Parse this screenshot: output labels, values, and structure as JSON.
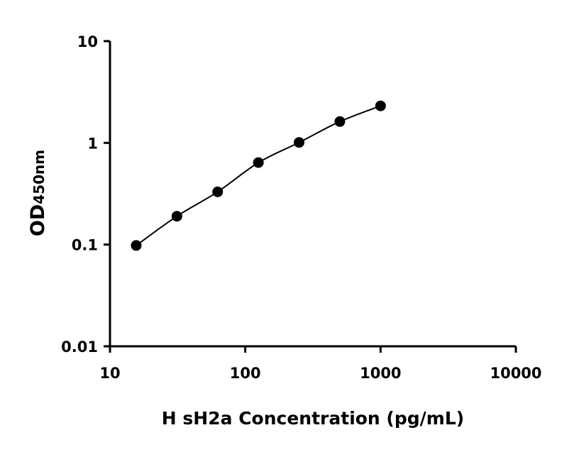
{
  "chart_data": {
    "type": "scatter",
    "xlabel": "H sH2a Concentration (pg/mL)",
    "ylabel_main": "OD",
    "ylabel_sub": "450nm",
    "x_scale": "log",
    "y_scale": "log",
    "xlim": [
      10,
      10000
    ],
    "ylim": [
      0.01,
      10
    ],
    "x_ticks": [
      "10",
      "100",
      "1000",
      "10000"
    ],
    "y_ticks": [
      "0.01",
      "0.1",
      "1",
      "10"
    ],
    "grid": false,
    "fit_curve": true,
    "series": [
      {
        "x": [
          15.625,
          31.25,
          62.5,
          125,
          250,
          500,
          1000
        ],
        "y": [
          0.098,
          0.19,
          0.33,
          0.64,
          1.01,
          1.62,
          2.31
        ]
      }
    ],
    "color": "#000000"
  }
}
